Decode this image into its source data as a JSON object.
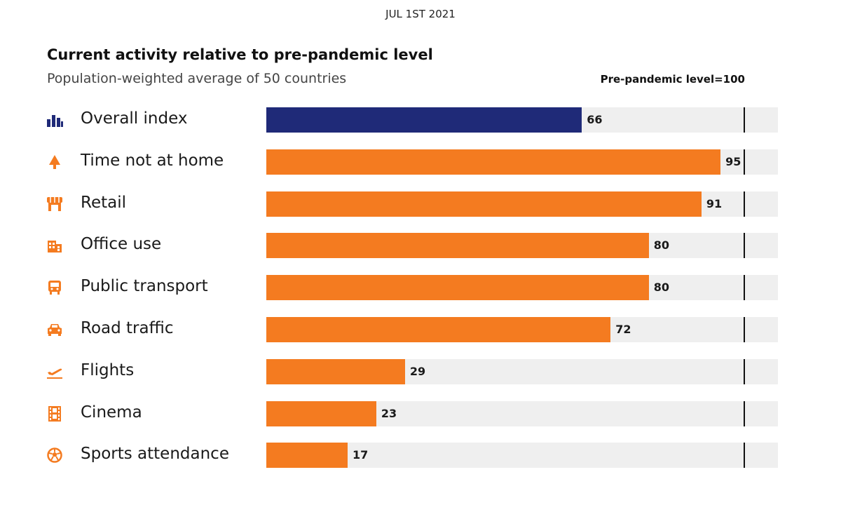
{
  "header": {
    "date": "JUL 1ST 2021",
    "title": "Current activity relative to pre-pandemic level",
    "subtitle": "Population-weighted average of 50 countries",
    "reference_label": "Pre-pandemic level=100"
  },
  "colors": {
    "overall": "#1f2a78",
    "category": "#f47b20",
    "track": "#efefef",
    "reference": "#111111"
  },
  "chart_data": {
    "type": "bar",
    "orientation": "horizontal",
    "title": "Current activity relative to pre-pandemic level",
    "subtitle": "Population-weighted average of 50 countries",
    "categories": [
      "Overall index",
      "Time not at home",
      "Retail",
      "Office use",
      "Public transport",
      "Road traffic",
      "Flights",
      "Cinema",
      "Sports attendance"
    ],
    "values": [
      66,
      95,
      91,
      80,
      80,
      72,
      29,
      23,
      17
    ],
    "icons": [
      "bar-chart-icon",
      "tree-icon",
      "storefront-icon",
      "office-building-icon",
      "bus-icon",
      "car-icon",
      "airplane-takeoff-icon",
      "film-strip-icon",
      "soccer-ball-icon"
    ],
    "reference_value": 100,
    "reference_label": "Pre-pandemic level=100",
    "xlim": [
      0,
      107
    ],
    "grid": false
  }
}
